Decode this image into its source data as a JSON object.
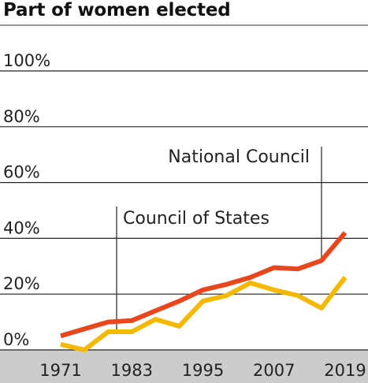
{
  "chart_data": {
    "type": "line",
    "title": "Part of women elected",
    "x": [
      1971,
      1975,
      1979,
      1983,
      1987,
      1991,
      1995,
      1999,
      2003,
      2007,
      2011,
      2015,
      2019
    ],
    "x_ticks": [
      "1971",
      "1983",
      "1995",
      "2007",
      "2019"
    ],
    "y_ticks": [
      "0%",
      "20%",
      "40%",
      "60%",
      "80%",
      "100%"
    ],
    "ylim": [
      0,
      100
    ],
    "series": [
      {
        "name": "National Council",
        "color": "#e8471e",
        "values": [
          5,
          7.5,
          10,
          10.5,
          14,
          17.5,
          21.5,
          23.5,
          26,
          29.5,
          29,
          32,
          42
        ]
      },
      {
        "name": "Council of States",
        "color": "#f5b800",
        "values": [
          2,
          0,
          6.5,
          6.5,
          11,
          8.5,
          17.5,
          19.5,
          24,
          21.5,
          19.5,
          15,
          26
        ]
      }
    ],
    "grid": true,
    "gridline_color": "#222222",
    "axis_band_color": "#cccccc",
    "top_rule_color": "#999999"
  }
}
